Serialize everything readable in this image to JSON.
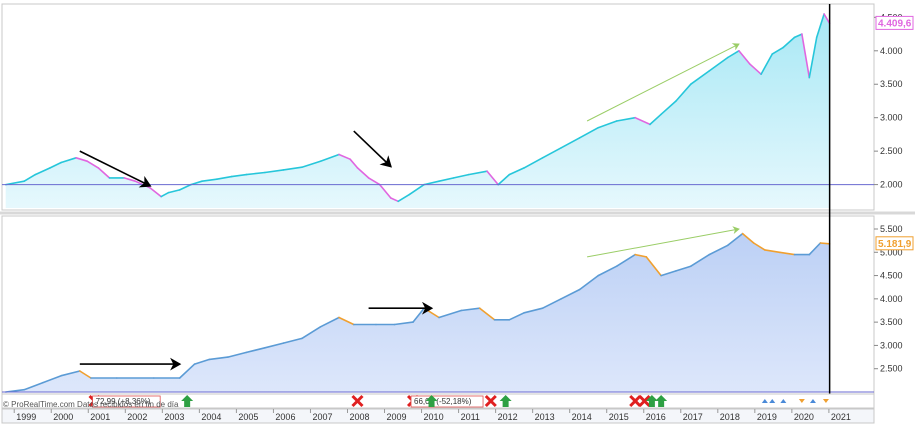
{
  "chart_data": [
    {
      "type": "area",
      "panel": "top",
      "title": "",
      "xlabel": "",
      "ylabel": "",
      "ylim": [
        1650,
        4550
      ],
      "yticks": [
        2000,
        2500,
        3000,
        3500,
        4000,
        4500
      ],
      "ytick_labels": [
        "2.000",
        "2.500",
        "3.000",
        "3.500",
        "4.000",
        "4.500"
      ],
      "baseline": 2000,
      "last_value_label": "4.409,6",
      "colors": {
        "line_up": "#26c6da",
        "line_down": "#e066e0",
        "fill_top": "#a8e8f5",
        "fill_bottom": "#e6f8fd",
        "label_border": "#e066e0"
      },
      "series": [
        {
          "x": [
            1998.5,
            1999.0,
            1999.3,
            1999.7,
            2000.0,
            2000.4,
            2000.7,
            2001.0,
            2001.3,
            2001.7,
            2002.0,
            2002.4,
            2002.7,
            2002.9,
            2003.2,
            2003.5,
            2003.8,
            2004.2,
            2004.6,
            2005.0,
            2005.5,
            2006.0,
            2006.5,
            2007.0,
            2007.5,
            2007.8,
            2008.0,
            2008.3,
            2008.6,
            2008.9,
            2009.1,
            2009.4,
            2009.8,
            2010.2,
            2010.6,
            2011.0,
            2011.5,
            2011.8,
            2012.1,
            2012.5,
            2013.0,
            2013.5,
            2014.0,
            2014.5,
            2015.0,
            2015.5,
            2015.9,
            2016.2,
            2016.6,
            2017.0,
            2017.5,
            2018.0,
            2018.3,
            2018.6,
            2018.9,
            2019.2,
            2019.5,
            2019.8,
            2020.0,
            2020.2,
            2020.4,
            2020.6,
            2020.75
          ],
          "values": [
            2000,
            2050,
            2150,
            2250,
            2330,
            2400,
            2350,
            2250,
            2100,
            2100,
            2050,
            1950,
            1820,
            1880,
            1920,
            2000,
            2050,
            2080,
            2120,
            2150,
            2180,
            2220,
            2260,
            2350,
            2450,
            2380,
            2250,
            2100,
            2000,
            1800,
            1750,
            1850,
            2000,
            2050,
            2100,
            2150,
            2200,
            2000,
            2150,
            2250,
            2400,
            2550,
            2700,
            2850,
            2950,
            3000,
            2900,
            3050,
            3250,
            3500,
            3700,
            3900,
            4000,
            3800,
            3650,
            3950,
            4050,
            4200,
            4250,
            3600,
            4200,
            4550,
            4409.6
          ]
        }
      ]
    },
    {
      "type": "area",
      "panel": "bottom",
      "title": "",
      "xlabel": "",
      "ylabel": "",
      "ylim": [
        2000,
        5650
      ],
      "yticks": [
        2500,
        3000,
        3500,
        4000,
        4500,
        5000,
        5500
      ],
      "ytick_labels": [
        "2.500",
        "3.000",
        "3.500",
        "4.000",
        "4.500",
        "5.000",
        "5.500"
      ],
      "baseline": 2000,
      "last_value_label": "5.181,9",
      "colors": {
        "line_up": "#5b9bd5",
        "line_down": "#f0a030",
        "fill_top": "#bcd0f5",
        "fill_bottom": "#dde7fb",
        "label_border": "#f0a030"
      },
      "series": [
        {
          "x": [
            1998.5,
            1999.0,
            1999.5,
            2000.0,
            2000.5,
            2000.8,
            2001.5,
            2002.5,
            2003.2,
            2003.6,
            2004.0,
            2004.5,
            2005.0,
            2005.5,
            2006.0,
            2006.5,
            2007.0,
            2007.5,
            2007.9,
            2008.5,
            2009.0,
            2009.5,
            2009.8,
            2010.2,
            2010.8,
            2011.3,
            2011.7,
            2012.1,
            2012.5,
            2013.0,
            2013.5,
            2014.0,
            2014.5,
            2015.0,
            2015.5,
            2015.8,
            2016.2,
            2016.6,
            2017.0,
            2017.5,
            2018.0,
            2018.4,
            2018.7,
            2019.0,
            2019.4,
            2019.8,
            2020.2,
            2020.5,
            2020.75
          ],
          "values": [
            2000,
            2050,
            2200,
            2350,
            2450,
            2300,
            2300,
            2300,
            2300,
            2600,
            2700,
            2750,
            2850,
            2950,
            3050,
            3150,
            3400,
            3600,
            3450,
            3450,
            3450,
            3500,
            3800,
            3600,
            3750,
            3800,
            3550,
            3550,
            3700,
            3800,
            4000,
            4200,
            4500,
            4700,
            4950,
            4900,
            4500,
            4600,
            4700,
            4950,
            5150,
            5400,
            5200,
            5050,
            5000,
            4950,
            4950,
            5200,
            5181.9
          ]
        }
      ]
    }
  ],
  "x_axis": {
    "range": [
      1998.4,
      2021.3
    ],
    "ticks": [
      "1999",
      "2000",
      "2001",
      "2002",
      "2003",
      "2004",
      "2005",
      "2006",
      "2007",
      "2008",
      "2009",
      "2010",
      "2011",
      "2012",
      "2013",
      "2014",
      "2015",
      "2016",
      "2017",
      "2018",
      "2019",
      "2020",
      "2021"
    ]
  },
  "cursor_x": 2020.75,
  "arrows": [
    {
      "panel": "top",
      "color": "#000000",
      "from": [
        2000.5,
        2500
      ],
      "to": [
        2002.4,
        1980
      ]
    },
    {
      "panel": "top",
      "color": "#000000",
      "from": [
        2007.9,
        2800
      ],
      "to": [
        2008.9,
        2270
      ]
    },
    {
      "panel": "top",
      "color": "#9acd66",
      "from": [
        2014.2,
        2950
      ],
      "to": [
        2018.3,
        4100
      ]
    },
    {
      "panel": "bottom",
      "color": "#000000",
      "from": [
        2000.5,
        2600
      ],
      "to": [
        2003.2,
        2600
      ]
    },
    {
      "panel": "bottom",
      "color": "#000000",
      "from": [
        2008.3,
        3800
      ],
      "to": [
        2010.0,
        3800
      ]
    },
    {
      "panel": "bottom",
      "color": "#9acd66",
      "from": [
        2014.2,
        4900
      ],
      "to": [
        2018.3,
        5500
      ]
    }
  ],
  "trade_markers": [
    {
      "x": 2000.9,
      "type": "sell",
      "label": "72,99 (+8,36%)"
    },
    {
      "x": 2003.4,
      "type": "buy",
      "label": ""
    },
    {
      "x": 2008.0,
      "type": "sell",
      "label": ""
    },
    {
      "x": 2009.5,
      "type": "sell",
      "label": "66,00 (-52,18%)"
    },
    {
      "x": 2010.0,
      "type": "buy",
      "label": ""
    },
    {
      "x": 2011.6,
      "type": "sell",
      "label": ""
    },
    {
      "x": 2012.0,
      "type": "buy",
      "label": ""
    },
    {
      "x": 2015.5,
      "type": "sell",
      "label": ""
    },
    {
      "x": 2015.75,
      "type": "sell",
      "label": ""
    },
    {
      "x": 2015.95,
      "type": "buy",
      "label": ""
    },
    {
      "x": 2016.2,
      "type": "buy",
      "label": ""
    },
    {
      "x": 2019.0,
      "type": "mini",
      "label": ""
    },
    {
      "x": 2019.2,
      "type": "mini",
      "label": ""
    },
    {
      "x": 2019.5,
      "type": "mini",
      "label": ""
    },
    {
      "x": 2020.0,
      "type": "mini-sell",
      "label": ""
    },
    {
      "x": 2020.3,
      "type": "mini",
      "label": ""
    },
    {
      "x": 2020.65,
      "type": "mini-sell",
      "label": ""
    }
  ],
  "footer_note": "© ProRealTime.com  Datos recibidos en fin de día"
}
